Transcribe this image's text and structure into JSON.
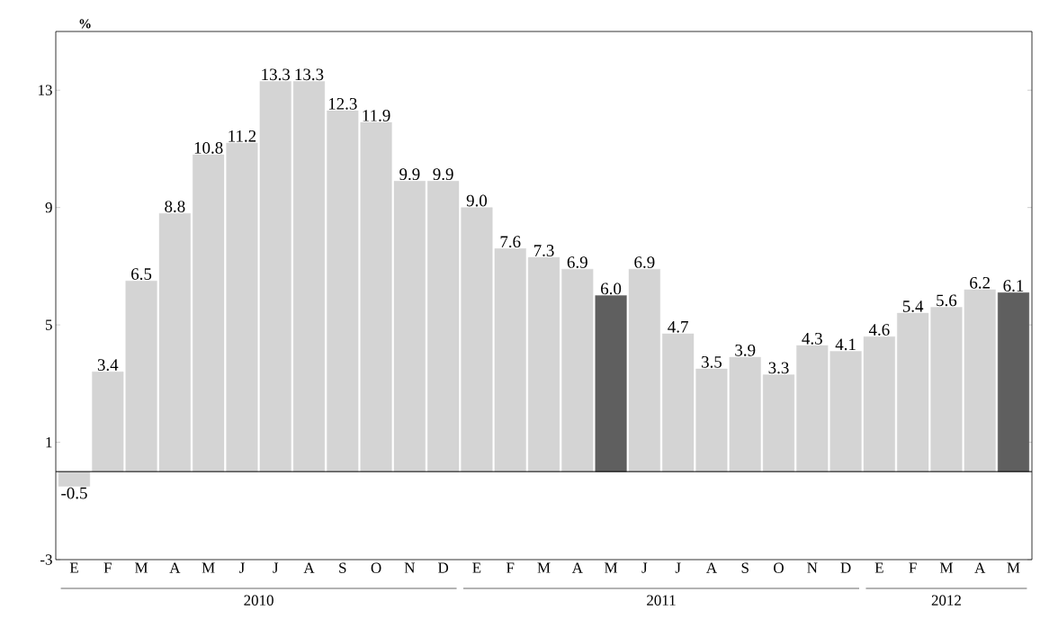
{
  "chart_data": {
    "type": "bar",
    "ylabel": "%",
    "categories": [
      "E",
      "F",
      "M",
      "A",
      "M",
      "J",
      "J",
      "A",
      "S",
      "O",
      "N",
      "D",
      "E",
      "F",
      "M",
      "A",
      "M",
      "J",
      "J",
      "A",
      "S",
      "O",
      "N",
      "D",
      "E",
      "F",
      "M",
      "A",
      "M"
    ],
    "values": [
      -0.5,
      3.4,
      6.5,
      8.8,
      10.8,
      11.2,
      13.3,
      13.3,
      12.3,
      11.9,
      9.9,
      9.9,
      9.0,
      7.6,
      7.3,
      6.9,
      6.0,
      6.9,
      4.7,
      3.5,
      3.9,
      3.3,
      4.3,
      4.1,
      4.6,
      5.4,
      5.6,
      6.2,
      6.1
    ],
    "colors": [
      "#d4d4d4",
      "#d4d4d4",
      "#d4d4d4",
      "#d4d4d4",
      "#d4d4d4",
      "#d4d4d4",
      "#d4d4d4",
      "#d4d4d4",
      "#d4d4d4",
      "#d4d4d4",
      "#d4d4d4",
      "#d4d4d4",
      "#d4d4d4",
      "#d4d4d4",
      "#d4d4d4",
      "#d4d4d4",
      "#5f5f5f",
      "#d4d4d4",
      "#d4d4d4",
      "#d4d4d4",
      "#d4d4d4",
      "#d4d4d4",
      "#d4d4d4",
      "#d4d4d4",
      "#d4d4d4",
      "#d4d4d4",
      "#d4d4d4",
      "#d4d4d4",
      "#5f5f5f"
    ],
    "ylim": [
      -3,
      15
    ],
    "yticks": [
      -3,
      1,
      5,
      9,
      13
    ],
    "ref_lines": [
      {
        "axis": "y",
        "value": 0
      }
    ],
    "data_labels": true,
    "value_labels": [
      "-0.5",
      "3.4",
      "6.5",
      "8.8",
      "10.8",
      "11.2",
      "13.3",
      "13.3",
      "12.3",
      "11.9",
      "9.9",
      "9.9",
      "9.0",
      "7.6",
      "7.3",
      "6.9",
      "6.0",
      "6.9",
      "4.7",
      "3.5",
      "3.9",
      "3.3",
      "4.3",
      "4.1",
      "4.6",
      "5.4",
      "5.6",
      "6.2",
      "6.1"
    ],
    "annotations": [
      "2010",
      "2011",
      "2012"
    ]
  }
}
